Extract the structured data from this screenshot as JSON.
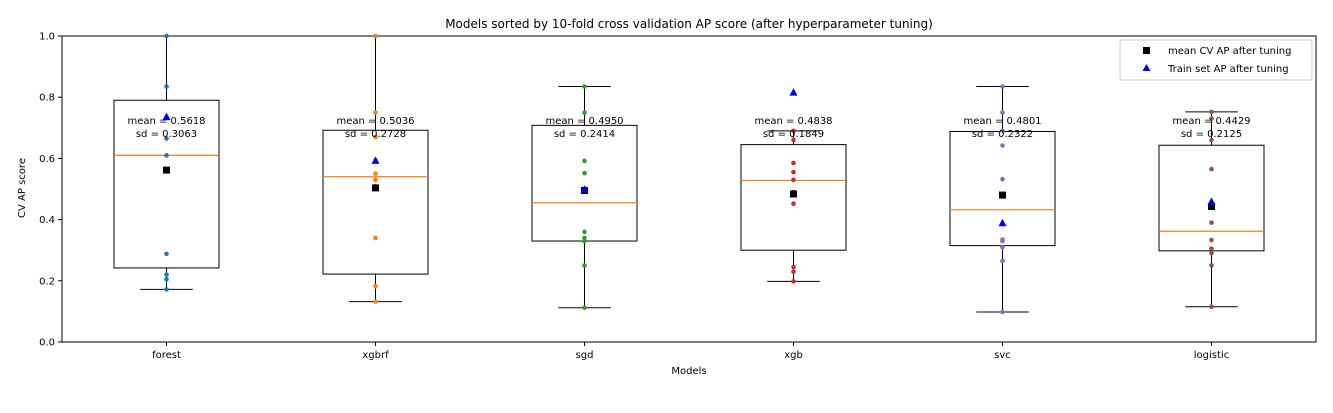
{
  "chart_data": {
    "type": "box",
    "title": "Models sorted by 10-fold cross validation AP score (after hyperparameter tuning)",
    "xlabel": "Models",
    "ylabel": "CV AP score",
    "ylim": [
      0.0,
      1.0
    ],
    "yticks": [
      "0.0",
      "0.2",
      "0.4",
      "0.6",
      "0.8",
      "1.0"
    ],
    "grid": false,
    "legend": {
      "placement": "top-right",
      "entries": [
        {
          "label": "mean CV AP after tuning",
          "marker": "square",
          "color": "#000000"
        },
        {
          "label": "Train set AP after tuning",
          "marker": "triangle",
          "color": "#0000ff"
        }
      ]
    },
    "median_color": "#ff7f0e",
    "categories": [
      "forest",
      "xgbrf",
      "sgd",
      "xgb",
      "svc",
      "logistic"
    ],
    "models": [
      {
        "name": "forest",
        "color": "#1f77b4",
        "whisker_low": 0.172,
        "q1": 0.242,
        "median": 0.61,
        "q3": 0.79,
        "whisker_high": 1.0,
        "mean": 0.5618,
        "train_ap": 0.735,
        "mean_label": "mean = 0.5618",
        "sd_label": "sd = 0.3063",
        "points": [
          1.0,
          0.835,
          0.735,
          0.665,
          0.61,
          0.56,
          0.288,
          0.22,
          0.205,
          0.172
        ]
      },
      {
        "name": "xgbrf",
        "color": "#ff7f0e",
        "whisker_low": 0.132,
        "q1": 0.222,
        "median": 0.54,
        "q3": 0.692,
        "whisker_high": 1.0,
        "mean": 0.5036,
        "train_ap": 0.592,
        "mean_label": "mean = 0.5036",
        "sd_label": "sd = 0.2728",
        "points": [
          1.0,
          0.75,
          0.67,
          0.55,
          0.53,
          0.51,
          0.34,
          0.182,
          0.132,
          0.595
        ]
      },
      {
        "name": "sgd",
        "color": "#2ca02c",
        "whisker_low": 0.112,
        "q1": 0.33,
        "median": 0.455,
        "q3": 0.708,
        "whisker_high": 0.835,
        "mean": 0.495,
        "train_ap": 0.498,
        "mean_label": "mean = 0.4950",
        "sd_label": "sd = 0.2414",
        "points": [
          0.835,
          0.75,
          0.592,
          0.552,
          0.5,
          0.36,
          0.34,
          0.33,
          0.25,
          0.112
        ]
      },
      {
        "name": "xgb",
        "color": "#d62728",
        "whisker_low": 0.198,
        "q1": 0.3,
        "median": 0.528,
        "q3": 0.645,
        "whisker_high": 0.69,
        "mean": 0.4838,
        "train_ap": 0.815,
        "mean_label": "mean = 0.4838",
        "sd_label": "sd = 0.1849",
        "points": [
          0.69,
          0.66,
          0.585,
          0.555,
          0.49,
          0.452,
          0.245,
          0.23,
          0.198,
          0.53
        ]
      },
      {
        "name": "svc",
        "color": "#9467bd",
        "whisker_low": 0.098,
        "q1": 0.315,
        "median": 0.432,
        "q3": 0.688,
        "whisker_high": 0.835,
        "mean": 0.4801,
        "train_ap": 0.388,
        "mean_label": "mean = 0.4801",
        "sd_label": "sd = 0.2322",
        "points": [
          0.835,
          0.75,
          0.642,
          0.532,
          0.335,
          0.33,
          0.31,
          0.265,
          0.098,
          0.69
        ]
      },
      {
        "name": "logistic",
        "color": "#8c564b",
        "whisker_low": 0.115,
        "q1": 0.298,
        "median": 0.362,
        "q3": 0.643,
        "whisker_high": 0.752,
        "mean": 0.4429,
        "train_ap": 0.458,
        "mean_label": "mean = 0.4429",
        "sd_label": "sd = 0.2125",
        "points": [
          0.752,
          0.73,
          0.565,
          0.39,
          0.333,
          0.305,
          0.29,
          0.25,
          0.115,
          0.66
        ]
      }
    ]
  }
}
